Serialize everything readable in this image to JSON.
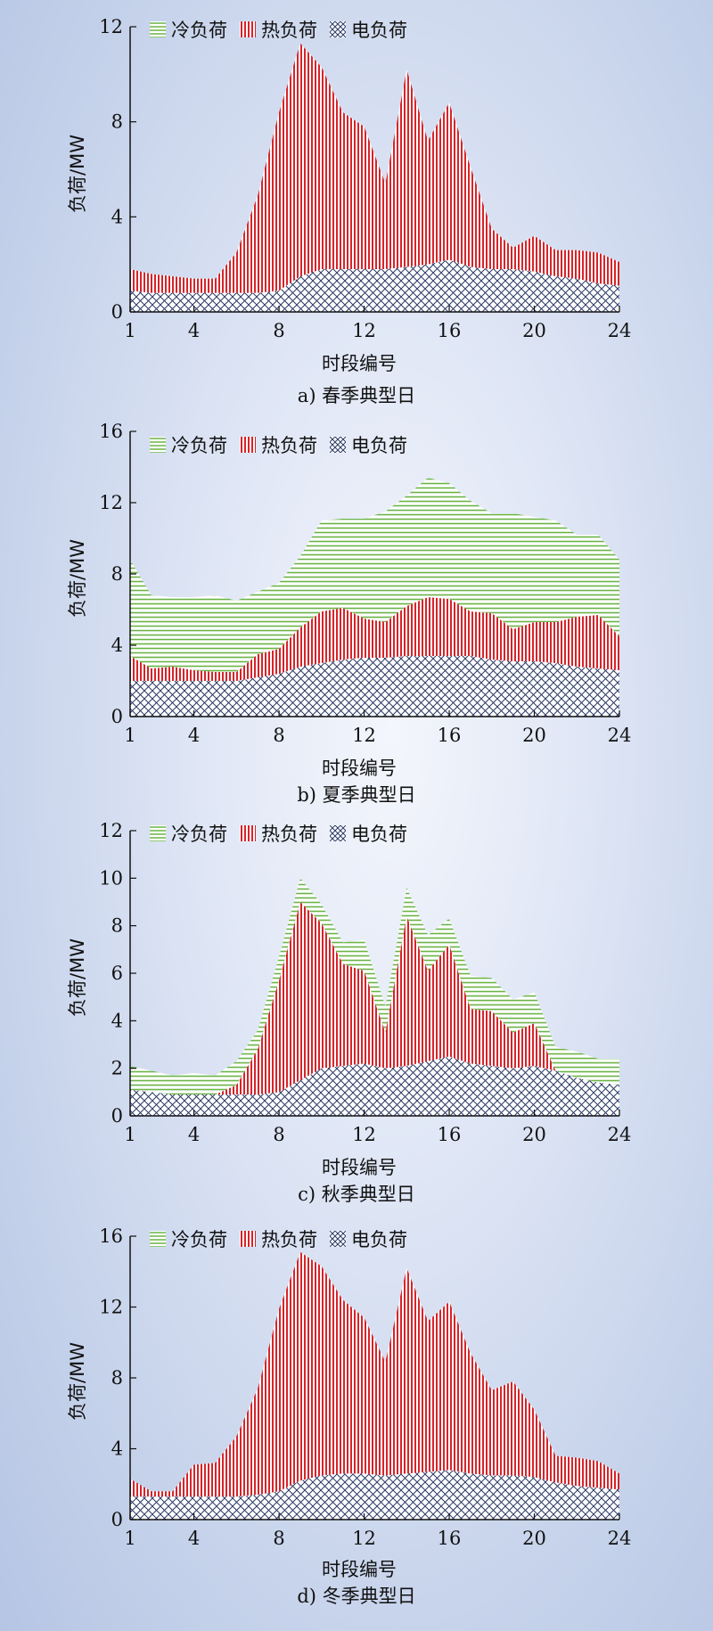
{
  "colors": {
    "cooling": "#6ab445",
    "heating": "#d6242a",
    "electric": "#2b3a66",
    "axis": "#111111"
  },
  "legend_labels": [
    "冷负荷",
    "热负荷",
    "电负荷"
  ],
  "chart_data": [
    {
      "type": "area",
      "caption": "a) 春季典型日",
      "xlabel": "时段编号",
      "ylabel": "负荷/MW",
      "x_ticks": [
        1,
        4,
        8,
        12,
        16,
        20,
        24
      ],
      "y_ticks": [
        0,
        4,
        8,
        12
      ],
      "xlim": [
        1,
        24
      ],
      "ylim": [
        0,
        12
      ],
      "stacked": true,
      "x": [
        1,
        2,
        3,
        4,
        5,
        6,
        7,
        8,
        9,
        10,
        11,
        12,
        13,
        14,
        15,
        16,
        17,
        18,
        19,
        20,
        21,
        22,
        23,
        24
      ],
      "series": [
        {
          "name": "电负荷",
          "values": [
            0.9,
            0.8,
            0.8,
            0.8,
            0.8,
            0.8,
            0.8,
            0.9,
            1.5,
            1.8,
            1.8,
            1.8,
            1.8,
            1.9,
            2.0,
            2.2,
            1.9,
            1.8,
            1.8,
            1.7,
            1.5,
            1.4,
            1.2,
            1.1
          ]
        },
        {
          "name": "热负荷",
          "values": [
            0.9,
            0.8,
            0.7,
            0.6,
            0.6,
            1.7,
            4.1,
            7.5,
            9.8,
            8.5,
            6.6,
            6.0,
            3.6,
            8.3,
            5.2,
            6.6,
            4.2,
            1.7,
            0.9,
            1.5,
            1.1,
            1.2,
            1.3,
            1.0
          ]
        },
        {
          "name": "冷负荷",
          "values": [
            0,
            0,
            0,
            0,
            0,
            0,
            0,
            0,
            0,
            0,
            0,
            0,
            0,
            0,
            0,
            0,
            0,
            0,
            0,
            0,
            0,
            0,
            0,
            0
          ]
        }
      ]
    },
    {
      "type": "area",
      "caption": "b) 夏季典型日",
      "xlabel": "时段编号",
      "ylabel": "负荷/MW",
      "x_ticks": [
        1,
        4,
        8,
        12,
        16,
        20,
        24
      ],
      "y_ticks": [
        0,
        4,
        8,
        12,
        16
      ],
      "xlim": [
        1,
        24
      ],
      "ylim": [
        0,
        16
      ],
      "stacked": true,
      "x": [
        1,
        2,
        3,
        4,
        5,
        6,
        7,
        8,
        9,
        10,
        11,
        12,
        13,
        14,
        15,
        16,
        17,
        18,
        19,
        20,
        21,
        22,
        23,
        24
      ],
      "series": [
        {
          "name": "电负荷",
          "values": [
            2.0,
            2.0,
            2.0,
            2.0,
            2.0,
            2.0,
            2.2,
            2.4,
            2.8,
            3.0,
            3.2,
            3.3,
            3.3,
            3.4,
            3.4,
            3.4,
            3.4,
            3.2,
            3.1,
            3.1,
            3.0,
            2.8,
            2.7,
            2.6
          ]
        },
        {
          "name": "热负荷",
          "values": [
            1.4,
            0.7,
            0.8,
            0.6,
            0.5,
            0.5,
            1.3,
            1.4,
            2.2,
            2.9,
            2.9,
            2.2,
            2.0,
            2.8,
            3.3,
            3.2,
            2.5,
            2.6,
            1.8,
            2.2,
            2.3,
            2.8,
            3.0,
            1.9
          ]
        },
        {
          "name": "冷负荷",
          "values": [
            5.4,
            4.1,
            3.9,
            4.1,
            4.3,
            4.0,
            3.5,
            3.7,
            4.0,
            5.1,
            5.0,
            5.6,
            6.2,
            6.2,
            6.7,
            6.5,
            6.2,
            5.6,
            6.5,
            5.9,
            5.7,
            4.6,
            4.5,
            4.3
          ]
        }
      ]
    },
    {
      "type": "area",
      "caption": "c) 秋季典型日",
      "xlabel": "时段编号",
      "ylabel": "负荷/MW",
      "x_ticks": [
        1,
        4,
        8,
        12,
        16,
        20,
        24
      ],
      "y_ticks": [
        0,
        2,
        4,
        6,
        8,
        10,
        12
      ],
      "xlim": [
        1,
        24
      ],
      "ylim": [
        0,
        12
      ],
      "stacked": true,
      "x": [
        1,
        2,
        3,
        4,
        5,
        6,
        7,
        8,
        9,
        10,
        11,
        12,
        13,
        14,
        15,
        16,
        17,
        18,
        19,
        20,
        21,
        22,
        23,
        24
      ],
      "series": [
        {
          "name": "电负荷",
          "values": [
            1.1,
            1.0,
            0.9,
            0.9,
            0.9,
            0.9,
            0.9,
            1.0,
            1.5,
            2.0,
            2.1,
            2.2,
            2.0,
            2.1,
            2.3,
            2.5,
            2.2,
            2.1,
            2.0,
            2.1,
            1.9,
            1.6,
            1.4,
            1.3
          ]
        },
        {
          "name": "热负荷",
          "values": [
            0,
            0,
            0,
            0,
            0,
            0.4,
            1.9,
            4.7,
            7.5,
            6.1,
            4.3,
            3.9,
            1.5,
            6.3,
            3.8,
            4.7,
            2.3,
            2.3,
            1.5,
            1.8,
            0,
            0,
            0,
            0
          ]
        },
        {
          "name": "冷负荷",
          "values": [
            1.0,
            0.9,
            0.8,
            0.9,
            0.8,
            1.0,
            0.8,
            1.0,
            1.0,
            0.8,
            0.9,
            1.3,
            1.1,
            1.2,
            1.5,
            1.1,
            1.4,
            1.4,
            1.4,
            1.3,
            1.0,
            1.1,
            1.0,
            1.1
          ]
        }
      ]
    },
    {
      "type": "area",
      "caption": "d) 冬季典型日",
      "xlabel": "时段编号",
      "ylabel": "负荷/MW",
      "x_ticks": [
        1,
        4,
        8,
        12,
        16,
        20,
        24
      ],
      "y_ticks": [
        0,
        4,
        8,
        12,
        16
      ],
      "xlim": [
        1,
        24
      ],
      "ylim": [
        0,
        16
      ],
      "stacked": true,
      "x": [
        1,
        2,
        3,
        4,
        5,
        6,
        7,
        8,
        9,
        10,
        11,
        12,
        13,
        14,
        15,
        16,
        17,
        18,
        19,
        20,
        21,
        22,
        23,
        24
      ],
      "series": [
        {
          "name": "电负荷",
          "values": [
            1.3,
            1.3,
            1.3,
            1.3,
            1.3,
            1.3,
            1.4,
            1.6,
            2.2,
            2.5,
            2.6,
            2.6,
            2.5,
            2.6,
            2.7,
            2.8,
            2.6,
            2.5,
            2.5,
            2.4,
            2.1,
            1.9,
            1.8,
            1.7
          ]
        },
        {
          "name": "热负荷",
          "values": [
            1.0,
            0.3,
            0.3,
            1.8,
            1.9,
            3.4,
            6.0,
            10.3,
            12.9,
            11.8,
            9.8,
            8.8,
            6.4,
            11.6,
            8.5,
            9.5,
            6.8,
            4.8,
            5.3,
            3.8,
            1.5,
            1.6,
            1.5,
            0.9
          ]
        },
        {
          "name": "冷负荷",
          "values": [
            0,
            0,
            0,
            0,
            0,
            0,
            0,
            0,
            0,
            0,
            0,
            0,
            0,
            0,
            0,
            0,
            0,
            0,
            0,
            0,
            0,
            0,
            0,
            0
          ]
        }
      ]
    }
  ]
}
